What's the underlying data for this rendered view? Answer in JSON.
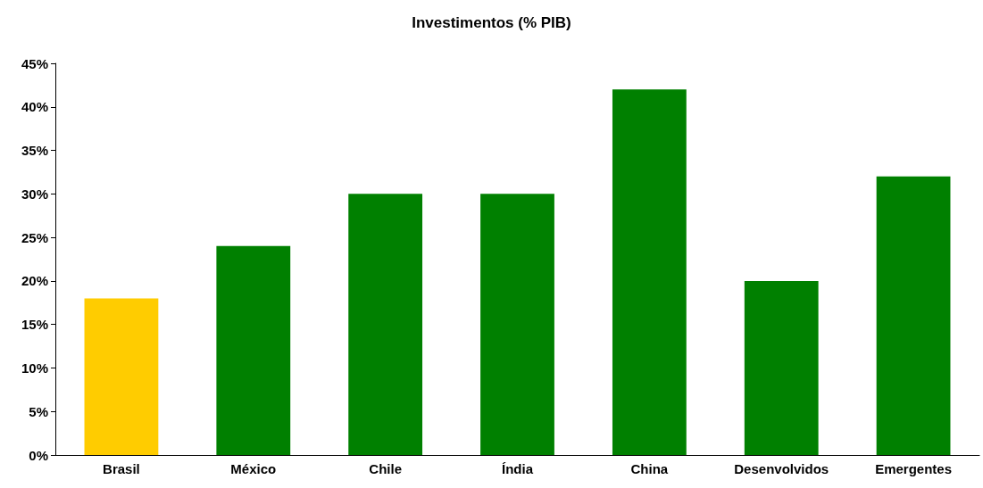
{
  "chart_data": {
    "type": "bar",
    "title": "Investimentos (% PIB)",
    "categories": [
      "Brasil",
      "México",
      "Chile",
      "Índia",
      "China",
      "Desenvolvidos",
      "Emergentes"
    ],
    "values": [
      18,
      24,
      30,
      30,
      42,
      20,
      32
    ],
    "colors": [
      "#ffcc00",
      "#008000",
      "#008000",
      "#008000",
      "#008000",
      "#008000",
      "#008000"
    ],
    "ylim": [
      0,
      45
    ],
    "yticks": [
      {
        "value": 0,
        "label": "0%"
      },
      {
        "value": 5,
        "label": "5%"
      },
      {
        "value": 10,
        "label": "10%"
      },
      {
        "value": 15,
        "label": "15%"
      },
      {
        "value": 20,
        "label": "20%"
      },
      {
        "value": 25,
        "label": "25%"
      },
      {
        "value": 30,
        "label": "30%"
      },
      {
        "value": 35,
        "label": "35%"
      },
      {
        "value": 40,
        "label": "40%"
      },
      {
        "value": 45,
        "label": "45%"
      }
    ],
    "grid": false
  }
}
